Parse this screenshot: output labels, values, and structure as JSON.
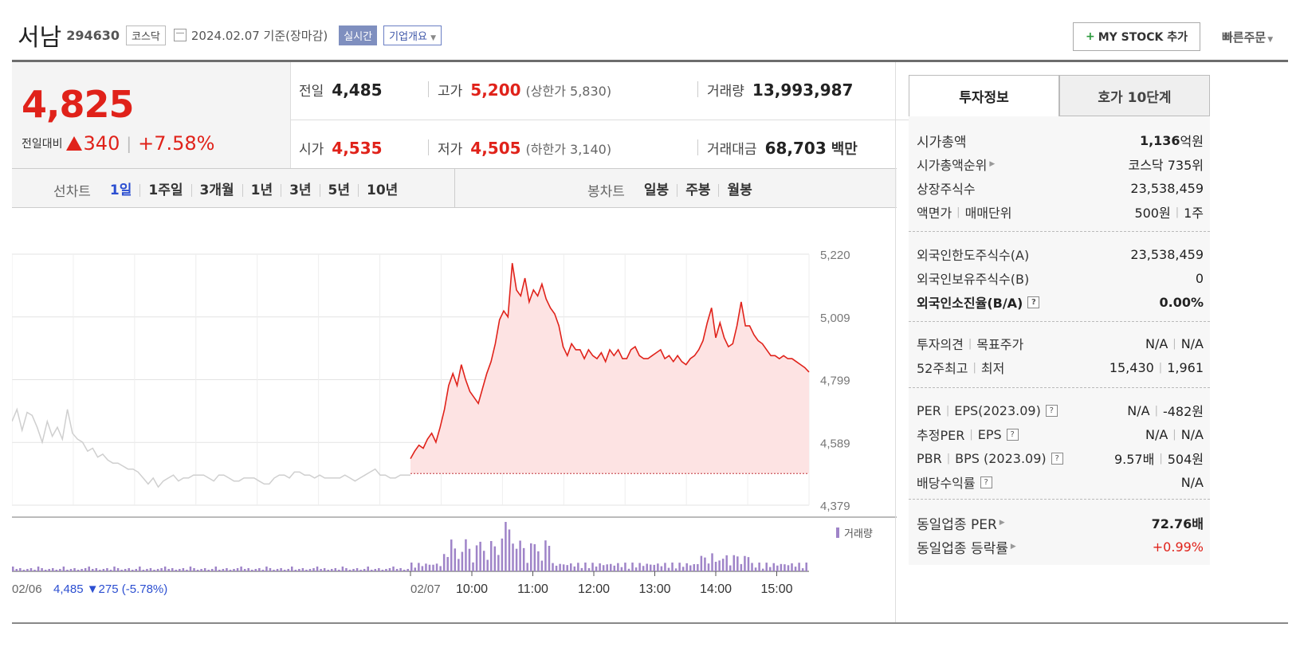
{
  "header": {
    "name": "서남",
    "code": "294630",
    "market": "코스닥",
    "date": "2024.02.07 기준(장마감)",
    "realtime": "실시간",
    "company_info": "기업개요",
    "mystock_label": "MY STOCK 추가",
    "quick_order": "빠른주문"
  },
  "price": {
    "current": "4,825",
    "change_label": "전일대비",
    "change": "340",
    "change_pct": "+7.58%"
  },
  "quote": {
    "prev_label": "전일",
    "prev": "4,485",
    "high_label": "고가",
    "high": "5,200",
    "upper_limit": "(상한가 5,830)",
    "volume_label": "거래량",
    "volume": "13,993,987",
    "open_label": "시가",
    "open": "4,535",
    "low_label": "저가",
    "low": "4,505",
    "lower_limit": "(하한가 3,140)",
    "amount_label": "거래대금",
    "amount": "68,703",
    "amount_unit": "백만"
  },
  "period_tabs": {
    "line_label": "선차트",
    "line_items": [
      "1일",
      "1주일",
      "3개월",
      "1년",
      "3년",
      "5년",
      "10년"
    ],
    "candle_label": "봉차트",
    "candle_items": [
      "일봉",
      "주봉",
      "월봉"
    ]
  },
  "chart_data": {
    "type": "line",
    "y_ticks": [
      "5,220",
      "5,009",
      "4,799",
      "4,589",
      "4,379"
    ],
    "ylim": [
      4379,
      5220
    ],
    "x_ticks": [
      "10:00",
      "11:00",
      "12:00",
      "13:00",
      "14:00",
      "15:00"
    ],
    "prev_day_label": "02/06",
    "prev_day_info": "4,485 ▼275 (-5.78%)",
    "today_label": "02/07",
    "volume_legend": "거래량",
    "prev_close": 4485,
    "series": [
      {
        "values": [
          4660,
          4700,
          4630,
          4690,
          4680,
          4640,
          4590,
          4660,
          4610,
          4640,
          4600,
          4700,
          4620,
          4600,
          4590,
          4560,
          4570,
          4540,
          4550,
          4530,
          4520,
          4520,
          4510,
          4500,
          4500,
          4490,
          4470,
          4450,
          4470,
          4440,
          4460,
          4470,
          4480,
          4460,
          4470,
          4470,
          4480,
          4480,
          4480,
          4470,
          4460,
          4480,
          4480,
          4470,
          4460,
          4460,
          4470,
          4470,
          4470,
          4460,
          4450,
          4450,
          4470,
          4480,
          4480,
          4470,
          4490,
          4490,
          4480,
          4480,
          4470,
          4480,
          4470,
          4470,
          4470,
          4470,
          4480,
          4470,
          4460,
          4470,
          4480,
          4490,
          4500,
          4480,
          4480,
          4470,
          4470,
          4480,
          4480,
          4480
        ]
      },
      {
        "values": [
          4535,
          4560,
          4580,
          4570,
          4600,
          4620,
          4590,
          4640,
          4700,
          4780,
          4820,
          4780,
          4850,
          4800,
          4760,
          4740,
          4720,
          4770,
          4820,
          4860,
          4920,
          5000,
          5030,
          5010,
          5190,
          5100,
          5080,
          5140,
          5060,
          5100,
          5080,
          5120,
          5070,
          5040,
          5020,
          4980,
          4910,
          4880,
          4920,
          4900,
          4900,
          4870,
          4900,
          4880,
          4870,
          4890,
          4860,
          4900,
          4880,
          4900,
          4870,
          4870,
          4900,
          4910,
          4880,
          4870,
          4870,
          4880,
          4890,
          4900,
          4870,
          4880,
          4860,
          4880,
          4860,
          4850,
          4870,
          4880,
          4900,
          4930,
          4990,
          5040,
          4940,
          4990,
          4940,
          4910,
          4920,
          4980,
          5060,
          4980,
          4980,
          4950,
          4930,
          4920,
          4900,
          4880,
          4880,
          4870,
          4880,
          4870,
          4870,
          4860,
          4850,
          4840,
          4825
        ]
      }
    ]
  },
  "invest": {
    "tab1": "투자정보",
    "tab2": "호가 10단계",
    "market_cap_label": "시가총액",
    "market_cap": "1,136",
    "market_cap_unit": "억원",
    "rank_label": "시가총액순위",
    "rank": "코스닥 735위",
    "shares_label": "상장주식수",
    "shares": "23,538,459",
    "par_label": "액면가",
    "unit_label": "매매단위",
    "par": "500원",
    "unit": "1주",
    "foreign_limit_label": "외국인한도주식수(A)",
    "foreign_limit": "23,538,459",
    "foreign_hold_label": "외국인보유주식수(B)",
    "foreign_hold": "0",
    "foreign_ratio_label": "외국인소진율(B/A)",
    "foreign_ratio": "0.00%",
    "opinion_label": "투자의견",
    "target_label": "목표주가",
    "opinion": "N/A",
    "target": "N/A",
    "w52_high_label": "52주최고",
    "w52_low_label": "최저",
    "w52_high": "15,430",
    "w52_low": "1,961",
    "per_label": "PER",
    "eps_label": "EPS(2023.09)",
    "per": "N/A",
    "eps": "-482원",
    "est_per_label": "추정PER",
    "est_eps_label": "EPS",
    "est_per": "N/A",
    "est_eps": "N/A",
    "pbr_label": "PBR",
    "bps_label": "BPS (2023.09)",
    "pbr": "9.57배",
    "bps": "504원",
    "div_label": "배당수익률",
    "div": "N/A",
    "sector_per_label": "동일업종 PER",
    "sector_per": "72.76배",
    "sector_rate_label": "동일업종 등락률",
    "sector_rate": "+0.99%",
    "colors": {
      "up": "#e0221a",
      "down": "#2c4fd1",
      "volume": "#9f84c8"
    }
  }
}
